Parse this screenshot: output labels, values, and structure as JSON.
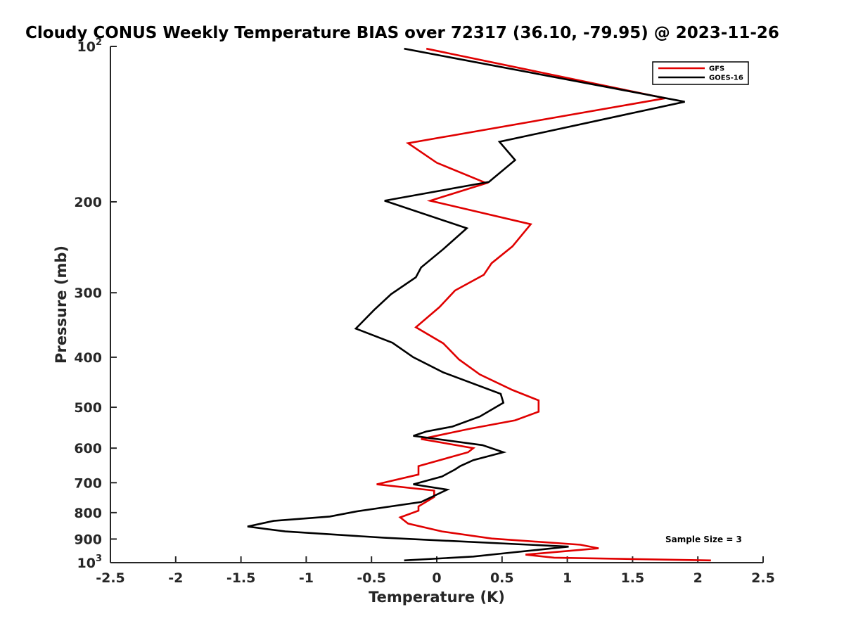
{
  "chart_data": {
    "type": "line",
    "title": "Cloudy CONUS Weekly Temperature BIAS over 72317 (36.10, -79.95) @ 2023-11-26",
    "xlabel": "Temperature (K)",
    "ylabel": "Pressure (mb)",
    "xlim": [
      -2.5,
      2.5
    ],
    "ylim": [
      1000,
      100
    ],
    "y_scale": "log",
    "x_ticks": [
      "-2.5",
      "-2",
      "-1.5",
      "-1",
      "-0.5",
      "0",
      "0.5",
      "1",
      "1.5",
      "2",
      "2.5"
    ],
    "y_ticks": [
      {
        "value": 100,
        "base": "10",
        "exp": "2"
      },
      {
        "value": 200,
        "label": "200"
      },
      {
        "value": 300,
        "label": "300"
      },
      {
        "value": 400,
        "label": "400"
      },
      {
        "value": 500,
        "label": "500"
      },
      {
        "value": 600,
        "label": "600"
      },
      {
        "value": 700,
        "label": "700"
      },
      {
        "value": 800,
        "label": "800"
      },
      {
        "value": 900,
        "label": "900"
      },
      {
        "value": 1000,
        "base": "10",
        "exp": "3"
      }
    ],
    "grid": false,
    "legend_position": "top-right",
    "annotation": "Sample Size = 3",
    "series": [
      {
        "name": "GFS",
        "color": "#e00000",
        "x": [
          -0.08,
          1.75,
          -0.22,
          0.0,
          0.38,
          -0.05,
          0.72,
          0.58,
          0.42,
          0.36,
          0.14,
          0.02,
          -0.16,
          0.05,
          0.17,
          0.33,
          0.58,
          0.78,
          0.78,
          0.6,
          0.26,
          -0.02,
          -0.12,
          0.28,
          0.24,
          -0.14,
          -0.14,
          -0.46,
          -0.02,
          -0.02,
          -0.14,
          -0.14,
          -0.28,
          -0.22,
          0.04,
          0.42,
          1.1,
          1.24,
          0.68,
          0.9,
          2.1
        ],
        "y": [
          101,
          126,
          154,
          168,
          184,
          199,
          221,
          244,
          263,
          277,
          297,
          320,
          350,
          376,
          404,
          432,
          463,
          485,
          510,
          530,
          550,
          569,
          576,
          600,
          611,
          650,
          675,
          705,
          725,
          746,
          778,
          793,
          817,
          840,
          870,
          898,
          923,
          938,
          965,
          978,
          990
        ]
      },
      {
        "name": "GOES-16",
        "color": "#000000",
        "x": [
          -0.25,
          1.9,
          0.48,
          0.6,
          0.4,
          -0.4,
          0.23,
          0.05,
          -0.12,
          -0.16,
          -0.35,
          -0.48,
          -0.62,
          -0.34,
          -0.18,
          0.05,
          0.49,
          0.51,
          0.33,
          0.12,
          -0.08,
          -0.18,
          0.35,
          0.51,
          0.28,
          0.18,
          0.14,
          0.04,
          -0.18,
          0.08,
          -0.12,
          -0.62,
          -0.82,
          -1.25,
          -1.45,
          -1.16,
          -0.4,
          1.01,
          0.5,
          0.28,
          -0.25
        ],
        "y": [
          101,
          128,
          153,
          166,
          183,
          199,
          225,
          247,
          268,
          280,
          302,
          324,
          352,
          375,
          400,
          428,
          471,
          490,
          521,
          545,
          557,
          568,
          592,
          611,
          633,
          650,
          660,
          681,
          705,
          722,
          763,
          796,
          814,
          830,
          851,
          870,
          895,
          931,
          960,
          973,
          990
        ]
      }
    ]
  }
}
